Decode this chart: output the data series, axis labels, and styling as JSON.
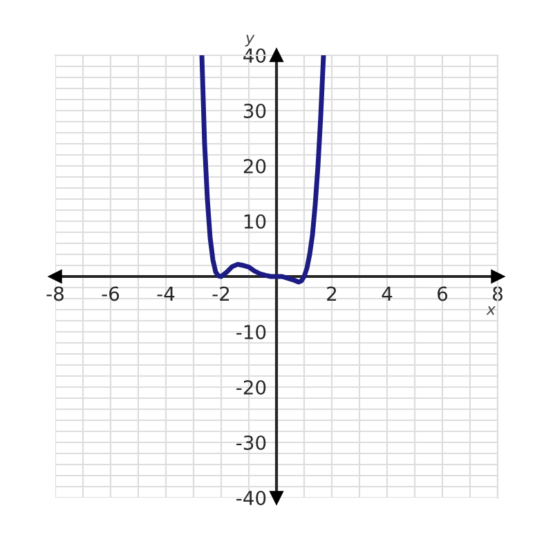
{
  "chart_data": {
    "type": "line",
    "xlabel": "x",
    "ylabel": "y",
    "x": [
      -2.7,
      -2.6,
      -2.5,
      -2.4,
      -2.3,
      -2.2,
      -2.1,
      -2,
      -1.8,
      -1.6,
      -1.4,
      -1.2,
      -1,
      -0.8,
      -0.6,
      -0.4,
      -0.2,
      0,
      0.2,
      0.4,
      0.6,
      0.8,
      0.9,
      1,
      1.1,
      1.2,
      1.3,
      1.4,
      1.5,
      1.6,
      1.7
    ],
    "series": [
      {
        "color": "#1c1c84",
        "values": [
          40,
          24,
          14,
          7,
          3,
          0.8,
          0.1,
          0,
          0.8,
          1.8,
          2.2,
          2,
          1.7,
          1,
          0.5,
          0.2,
          0,
          0,
          0,
          -0.3,
          -0.6,
          -1,
          -0.8,
          0,
          1.5,
          4,
          7.5,
          13,
          20,
          29,
          40
        ]
      }
    ],
    "xlim": [
      -8,
      8
    ],
    "ylim": [
      -40,
      40
    ],
    "xticks": [
      -8,
      {
        "value": -7,
        "label": null
      },
      -6,
      {
        "value": -5,
        "label": null
      },
      -4,
      {
        "value": -3,
        "label": null
      },
      -2,
      {
        "value": -1,
        "label": null
      },
      {
        "value": 0,
        "label": null
      },
      {
        "value": 1,
        "label": null
      },
      2,
      {
        "value": 3,
        "label": null
      },
      4,
      {
        "value": 5,
        "label": null
      },
      6,
      {
        "value": 7,
        "label": null
      },
      8
    ],
    "yticks": [
      -40,
      {
        "value": -38,
        "label": null
      },
      {
        "value": -36,
        "label": null
      },
      {
        "value": -34,
        "label": null
      },
      {
        "value": -32,
        "label": null
      },
      -30,
      {
        "value": -28,
        "label": null
      },
      {
        "value": -26,
        "label": null
      },
      {
        "value": -24,
        "label": null
      },
      {
        "value": -22,
        "label": null
      },
      -20,
      {
        "value": -18,
        "label": null
      },
      {
        "value": -16,
        "label": null
      },
      {
        "value": -14,
        "label": null
      },
      {
        "value": -12,
        "label": null
      },
      -10,
      {
        "value": -8,
        "label": null
      },
      {
        "value": -6,
        "label": null
      },
      {
        "value": -4,
        "label": null
      },
      {
        "value": -2,
        "label": null
      },
      {
        "value": 0,
        "label": null
      },
      {
        "value": 2,
        "label": null
      },
      {
        "value": 4,
        "label": null
      },
      {
        "value": 6,
        "label": null
      },
      {
        "value": 8,
        "label": null
      },
      10,
      {
        "value": 12,
        "label": null
      },
      {
        "value": 14,
        "label": null
      },
      {
        "value": 16,
        "label": null
      },
      {
        "value": 18,
        "label": null
      },
      20,
      {
        "value": 22,
        "label": null
      },
      {
        "value": 24,
        "label": null
      },
      {
        "value": 26,
        "label": null
      },
      {
        "value": 28,
        "label": null
      },
      30,
      {
        "value": 32,
        "label": null
      },
      {
        "value": 34,
        "label": null
      },
      {
        "value": 36,
        "label": null
      },
      {
        "value": 38,
        "label": null
      },
      40
    ],
    "grid": true,
    "marker": "none",
    "line_style": "solid"
  }
}
